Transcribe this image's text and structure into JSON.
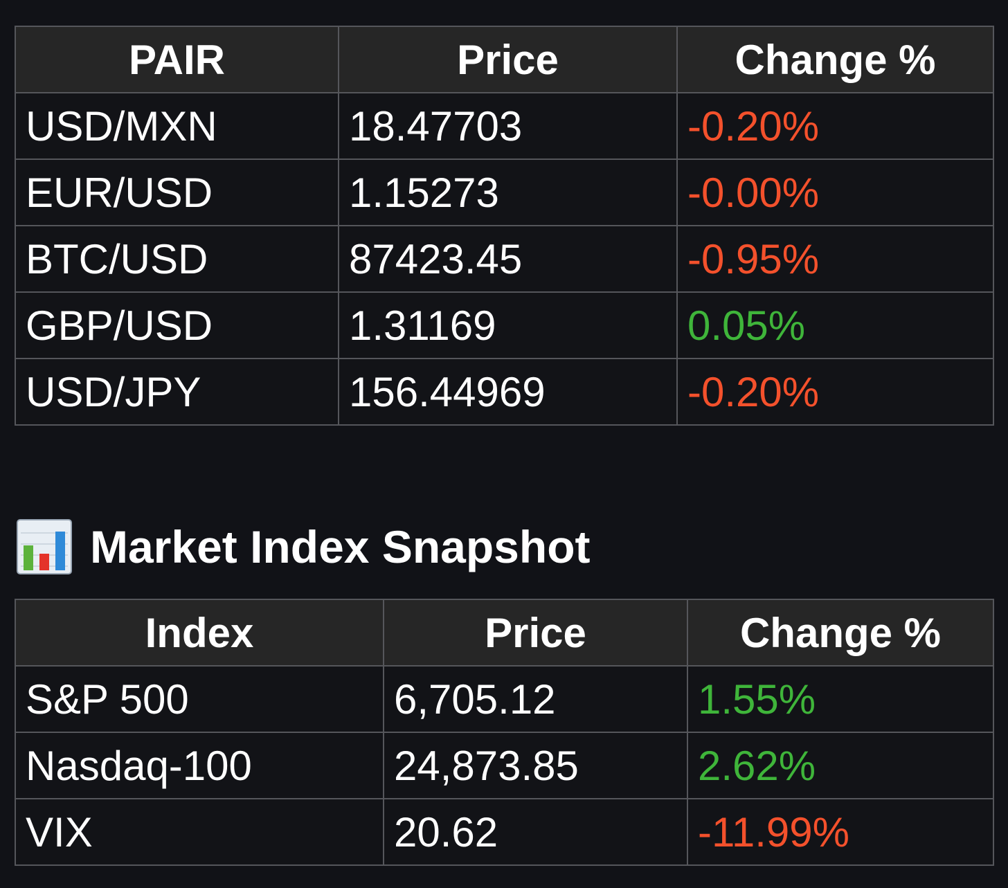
{
  "fx_table": {
    "headers": [
      "PAIR",
      "Price",
      "Change %"
    ],
    "rows": [
      {
        "pair": "USD/MXN",
        "price": "18.47703",
        "change": "-0.20%",
        "direction": "down"
      },
      {
        "pair": "EUR/USD",
        "price": "1.15273",
        "change": "-0.00%",
        "direction": "down"
      },
      {
        "pair": "BTC/USD",
        "price": "87423.45",
        "change": "-0.95%",
        "direction": "down"
      },
      {
        "pair": "GBP/USD",
        "price": "1.31169",
        "change": "0.05%",
        "direction": "up"
      },
      {
        "pair": "USD/JPY",
        "price": "156.44969",
        "change": "-0.20%",
        "direction": "down"
      }
    ]
  },
  "market_index": {
    "heading_icon": "bar-chart-emoji-icon",
    "heading": "Market Index Snapshot",
    "headers": [
      "Index",
      "Price",
      "Change %"
    ],
    "rows": [
      {
        "index": "S&P 500",
        "price": "6,705.12",
        "change": "1.55%",
        "direction": "up"
      },
      {
        "index": "Nasdaq-100",
        "price": "24,873.85",
        "change": "2.62%",
        "direction": "up"
      },
      {
        "index": "VIX",
        "price": "20.62",
        "change": "-11.99%",
        "direction": "down"
      }
    ]
  },
  "colors": {
    "background": "#111217",
    "header_background": "#262626",
    "border": "#55565b",
    "negative": "#f4512c",
    "positive": "#3fb53a"
  }
}
